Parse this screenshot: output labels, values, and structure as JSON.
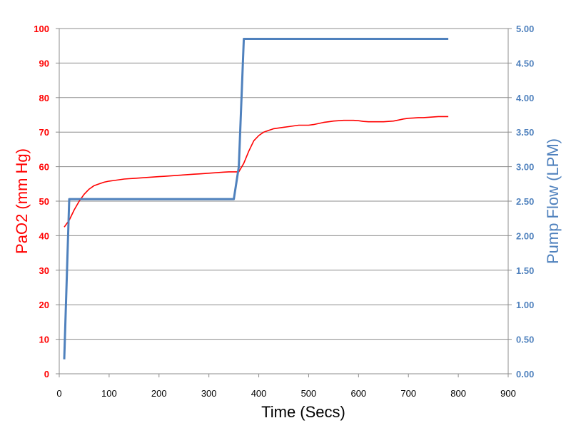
{
  "chart_data": {
    "type": "line",
    "title": "",
    "xlabel": "Time (Secs)",
    "ylabel_left": "PaO2 (mm Hg)",
    "ylabel_right": "Pump Flow (LPM)",
    "xlim": [
      0,
      900
    ],
    "ylim_left": [
      0,
      100
    ],
    "ylim_right": [
      0,
      5
    ],
    "x_ticks": [
      0,
      100,
      200,
      300,
      400,
      500,
      600,
      700,
      800,
      900
    ],
    "y_left_ticks": [
      0,
      10,
      20,
      30,
      40,
      50,
      60,
      70,
      80,
      90,
      100
    ],
    "y_right_ticks": [
      "0.00",
      "0.50",
      "1.00",
      "1.50",
      "2.00",
      "2.50",
      "3.00",
      "3.50",
      "4.00",
      "4.50",
      "5.00"
    ],
    "grid": true,
    "colors": {
      "left_axis": "#ff0000",
      "right_axis": "#4f81bd"
    },
    "series": [
      {
        "axis": "left",
        "color": "#ff0000",
        "x": [
          10,
          20,
          30,
          40,
          50,
          60,
          70,
          80,
          90,
          100,
          110,
          120,
          130,
          140,
          150,
          160,
          170,
          180,
          190,
          200,
          210,
          220,
          230,
          240,
          250,
          260,
          270,
          280,
          290,
          300,
          310,
          320,
          330,
          340,
          350,
          360,
          370,
          380,
          390,
          400,
          410,
          420,
          430,
          440,
          450,
          460,
          470,
          480,
          490,
          500,
          510,
          520,
          530,
          540,
          550,
          560,
          570,
          580,
          590,
          600,
          610,
          620,
          630,
          640,
          650,
          660,
          670,
          680,
          690,
          700,
          710,
          720,
          730,
          740,
          750,
          760,
          770,
          780
        ],
        "values": [
          42.5,
          44.5,
          47.5,
          50,
          52,
          53.5,
          54.5,
          55,
          55.5,
          55.8,
          56,
          56.2,
          56.4,
          56.5,
          56.6,
          56.7,
          56.8,
          56.9,
          57,
          57.1,
          57.2,
          57.3,
          57.4,
          57.5,
          57.6,
          57.7,
          57.8,
          57.9,
          58,
          58.1,
          58.2,
          58.3,
          58.4,
          58.5,
          58.5,
          58.5,
          61,
          64.5,
          67.5,
          69,
          70,
          70.5,
          71,
          71.2,
          71.4,
          71.6,
          71.8,
          72,
          72,
          72,
          72.2,
          72.5,
          72.8,
          73,
          73.2,
          73.3,
          73.4,
          73.4,
          73.4,
          73.3,
          73.1,
          73,
          73,
          73,
          73,
          73.1,
          73.2,
          73.5,
          73.8,
          74,
          74.1,
          74.2,
          74.2,
          74.3,
          74.4,
          74.5,
          74.5,
          74.5
        ]
      },
      {
        "axis": "right",
        "color": "#4f81bd",
        "x": [
          10,
          20,
          350,
          360,
          370,
          780
        ],
        "values": [
          0.21,
          2.53,
          2.53,
          3.0,
          4.85,
          4.85
        ]
      }
    ]
  }
}
